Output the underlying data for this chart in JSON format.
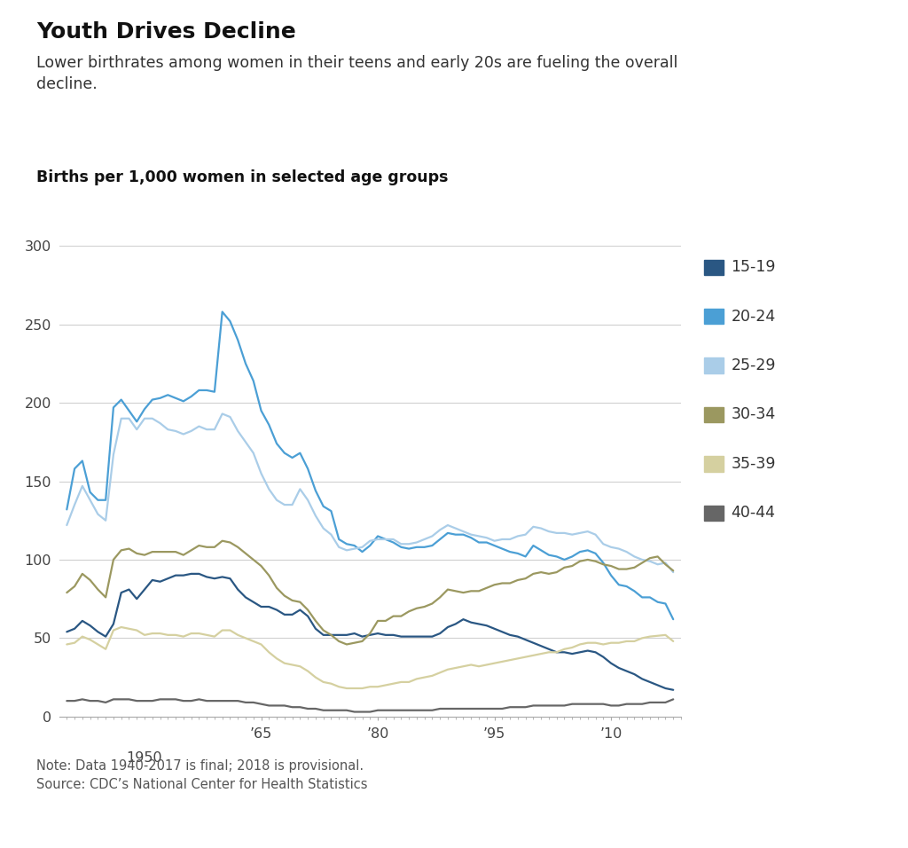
{
  "title": "Youth Drives Decline",
  "subtitle": "Lower birthrates among women in their teens and early 20s are fueling the overall\ndecline.",
  "axis_label": "Births per 1,000 women in selected age groups",
  "note": "Note: Data 1940-2017 is final; 2018 is provisional.\nSource: CDC’s National Center for Health Statistics",
  "ylim": [
    0,
    300
  ],
  "yticks": [
    0,
    50,
    100,
    150,
    200,
    250,
    300
  ],
  "xtick_positions": [
    1965,
    1980,
    1995,
    2010
  ],
  "xtick_labels": [
    "’65",
    "’80",
    "’95",
    "’10"
  ],
  "colors": {
    "15-19": "#2a5783",
    "20-24": "#4b9fd5",
    "25-29": "#aacde8",
    "30-34": "#9b9860",
    "35-39": "#d5d0a0",
    "40-44": "#666666"
  },
  "series": {
    "15-19": {
      "years": [
        1940,
        1941,
        1942,
        1943,
        1944,
        1945,
        1946,
        1947,
        1948,
        1949,
        1950,
        1951,
        1952,
        1953,
        1954,
        1955,
        1956,
        1957,
        1958,
        1959,
        1960,
        1961,
        1962,
        1963,
        1964,
        1965,
        1966,
        1967,
        1968,
        1969,
        1970,
        1971,
        1972,
        1973,
        1974,
        1975,
        1976,
        1977,
        1978,
        1979,
        1980,
        1981,
        1982,
        1983,
        1984,
        1985,
        1986,
        1987,
        1988,
        1989,
        1990,
        1991,
        1992,
        1993,
        1994,
        1995,
        1996,
        1997,
        1998,
        1999,
        2000,
        2001,
        2002,
        2003,
        2004,
        2005,
        2006,
        2007,
        2008,
        2009,
        2010,
        2011,
        2012,
        2013,
        2014,
        2015,
        2016,
        2017,
        2018
      ],
      "values": [
        54,
        56,
        61,
        58,
        54,
        51,
        59,
        79,
        81,
        75,
        81,
        87,
        86,
        88,
        90,
        90,
        91,
        91,
        89,
        88,
        89,
        88,
        81,
        76,
        73,
        70,
        70,
        68,
        65,
        65,
        68,
        64,
        56,
        52,
        52,
        52,
        52,
        53,
        51,
        52,
        53,
        52,
        52,
        51,
        51,
        51,
        51,
        51,
        53,
        57,
        59,
        62,
        60,
        59,
        58,
        56,
        54,
        52,
        51,
        49,
        47,
        45,
        43,
        41,
        41,
        40,
        41,
        42,
        41,
        38,
        34,
        31,
        29,
        27,
        24,
        22,
        20,
        18,
        17
      ]
    },
    "20-24": {
      "years": [
        1940,
        1941,
        1942,
        1943,
        1944,
        1945,
        1946,
        1947,
        1948,
        1949,
        1950,
        1951,
        1952,
        1953,
        1954,
        1955,
        1956,
        1957,
        1958,
        1959,
        1960,
        1961,
        1962,
        1963,
        1964,
        1965,
        1966,
        1967,
        1968,
        1969,
        1970,
        1971,
        1972,
        1973,
        1974,
        1975,
        1976,
        1977,
        1978,
        1979,
        1980,
        1981,
        1982,
        1983,
        1984,
        1985,
        1986,
        1987,
        1988,
        1989,
        1990,
        1991,
        1992,
        1993,
        1994,
        1995,
        1996,
        1997,
        1998,
        1999,
        2000,
        2001,
        2002,
        2003,
        2004,
        2005,
        2006,
        2007,
        2008,
        2009,
        2010,
        2011,
        2012,
        2013,
        2014,
        2015,
        2016,
        2017,
        2018
      ],
      "values": [
        132,
        158,
        163,
        143,
        138,
        138,
        197,
        202,
        195,
        188,
        196,
        202,
        203,
        205,
        203,
        201,
        204,
        208,
        208,
        207,
        258,
        252,
        240,
        225,
        214,
        195,
        186,
        174,
        168,
        165,
        168,
        158,
        144,
        134,
        131,
        113,
        110,
        109,
        105,
        109,
        115,
        113,
        111,
        108,
        107,
        108,
        108,
        109,
        113,
        117,
        116,
        116,
        114,
        111,
        111,
        109,
        107,
        105,
        104,
        102,
        109,
        106,
        103,
        102,
        100,
        102,
        105,
        106,
        104,
        98,
        90,
        84,
        83,
        80,
        76,
        76,
        73,
        72,
        62
      ]
    },
    "25-29": {
      "years": [
        1940,
        1941,
        1942,
        1943,
        1944,
        1945,
        1946,
        1947,
        1948,
        1949,
        1950,
        1951,
        1952,
        1953,
        1954,
        1955,
        1956,
        1957,
        1958,
        1959,
        1960,
        1961,
        1962,
        1963,
        1964,
        1965,
        1966,
        1967,
        1968,
        1969,
        1970,
        1971,
        1972,
        1973,
        1974,
        1975,
        1976,
        1977,
        1978,
        1979,
        1980,
        1981,
        1982,
        1983,
        1984,
        1985,
        1986,
        1987,
        1988,
        1989,
        1990,
        1991,
        1992,
        1993,
        1994,
        1995,
        1996,
        1997,
        1998,
        1999,
        2000,
        2001,
        2002,
        2003,
        2004,
        2005,
        2006,
        2007,
        2008,
        2009,
        2010,
        2011,
        2012,
        2013,
        2014,
        2015,
        2016,
        2017,
        2018
      ],
      "values": [
        122,
        135,
        147,
        138,
        129,
        125,
        167,
        190,
        190,
        183,
        190,
        190,
        187,
        183,
        182,
        180,
        182,
        185,
        183,
        183,
        193,
        191,
        182,
        175,
        168,
        155,
        145,
        138,
        135,
        135,
        145,
        138,
        128,
        120,
        116,
        108,
        106,
        107,
        108,
        112,
        113,
        113,
        113,
        110,
        110,
        111,
        113,
        115,
        119,
        122,
        120,
        118,
        116,
        115,
        114,
        112,
        113,
        113,
        115,
        116,
        121,
        120,
        118,
        117,
        117,
        116,
        117,
        118,
        116,
        110,
        108,
        107,
        105,
        102,
        100,
        99,
        97,
        98,
        92
      ]
    },
    "30-34": {
      "years": [
        1940,
        1941,
        1942,
        1943,
        1944,
        1945,
        1946,
        1947,
        1948,
        1949,
        1950,
        1951,
        1952,
        1953,
        1954,
        1955,
        1956,
        1957,
        1958,
        1959,
        1960,
        1961,
        1962,
        1963,
        1964,
        1965,
        1966,
        1967,
        1968,
        1969,
        1970,
        1971,
        1972,
        1973,
        1974,
        1975,
        1976,
        1977,
        1978,
        1979,
        1980,
        1981,
        1982,
        1983,
        1984,
        1985,
        1986,
        1987,
        1988,
        1989,
        1990,
        1991,
        1992,
        1993,
        1994,
        1995,
        1996,
        1997,
        1998,
        1999,
        2000,
        2001,
        2002,
        2003,
        2004,
        2005,
        2006,
        2007,
        2008,
        2009,
        2010,
        2011,
        2012,
        2013,
        2014,
        2015,
        2016,
        2017,
        2018
      ],
      "values": [
        79,
        83,
        91,
        87,
        81,
        76,
        100,
        106,
        107,
        104,
        103,
        105,
        105,
        105,
        105,
        103,
        106,
        109,
        108,
        108,
        112,
        111,
        108,
        104,
        100,
        96,
        90,
        82,
        77,
        74,
        73,
        68,
        61,
        55,
        52,
        48,
        46,
        47,
        48,
        53,
        61,
        61,
        64,
        64,
        67,
        69,
        70,
        72,
        76,
        81,
        80,
        79,
        80,
        80,
        82,
        84,
        85,
        85,
        87,
        88,
        91,
        92,
        91,
        92,
        95,
        96,
        99,
        100,
        99,
        97,
        96,
        94,
        94,
        95,
        98,
        101,
        102,
        97,
        93
      ]
    },
    "35-39": {
      "years": [
        1940,
        1941,
        1942,
        1943,
        1944,
        1945,
        1946,
        1947,
        1948,
        1949,
        1950,
        1951,
        1952,
        1953,
        1954,
        1955,
        1956,
        1957,
        1958,
        1959,
        1960,
        1961,
        1962,
        1963,
        1964,
        1965,
        1966,
        1967,
        1968,
        1969,
        1970,
        1971,
        1972,
        1973,
        1974,
        1975,
        1976,
        1977,
        1978,
        1979,
        1980,
        1981,
        1982,
        1983,
        1984,
        1985,
        1986,
        1987,
        1988,
        1989,
        1990,
        1991,
        1992,
        1993,
        1994,
        1995,
        1996,
        1997,
        1998,
        1999,
        2000,
        2001,
        2002,
        2003,
        2004,
        2005,
        2006,
        2007,
        2008,
        2009,
        2010,
        2011,
        2012,
        2013,
        2014,
        2015,
        2016,
        2017,
        2018
      ],
      "values": [
        46,
        47,
        51,
        49,
        46,
        43,
        55,
        57,
        56,
        55,
        52,
        53,
        53,
        52,
        52,
        51,
        53,
        53,
        52,
        51,
        55,
        55,
        52,
        50,
        48,
        46,
        41,
        37,
        34,
        33,
        32,
        29,
        25,
        22,
        21,
        19,
        18,
        18,
        18,
        19,
        19,
        20,
        21,
        22,
        22,
        24,
        25,
        26,
        28,
        30,
        31,
        32,
        33,
        32,
        33,
        34,
        35,
        36,
        37,
        38,
        39,
        40,
        41,
        41,
        43,
        44,
        46,
        47,
        47,
        46,
        47,
        47,
        48,
        48,
        50,
        51,
        51.5,
        52,
        48
      ]
    },
    "40-44": {
      "years": [
        1940,
        1941,
        1942,
        1943,
        1944,
        1945,
        1946,
        1947,
        1948,
        1949,
        1950,
        1951,
        1952,
        1953,
        1954,
        1955,
        1956,
        1957,
        1958,
        1959,
        1960,
        1961,
        1962,
        1963,
        1964,
        1965,
        1966,
        1967,
        1968,
        1969,
        1970,
        1971,
        1972,
        1973,
        1974,
        1975,
        1976,
        1977,
        1978,
        1979,
        1980,
        1981,
        1982,
        1983,
        1984,
        1985,
        1986,
        1987,
        1988,
        1989,
        1990,
        1991,
        1992,
        1993,
        1994,
        1995,
        1996,
        1997,
        1998,
        1999,
        2000,
        2001,
        2002,
        2003,
        2004,
        2005,
        2006,
        2007,
        2008,
        2009,
        2010,
        2011,
        2012,
        2013,
        2014,
        2015,
        2016,
        2017,
        2018
      ],
      "values": [
        10,
        10,
        11,
        10,
        10,
        9,
        11,
        11,
        11,
        10,
        10,
        10,
        11,
        11,
        11,
        10,
        10,
        11,
        10,
        10,
        10,
        10,
        10,
        9,
        9,
        8,
        7,
        7,
        7,
        6,
        6,
        5,
        5,
        4,
        4,
        4,
        4,
        3,
        3,
        3,
        4,
        4,
        4,
        4,
        4,
        4,
        4,
        4,
        5,
        5,
        5,
        5,
        5,
        5,
        5,
        5,
        5,
        6,
        6,
        6,
        7,
        7,
        7,
        7,
        7,
        8,
        8,
        8,
        8,
        8,
        7,
        7,
        8,
        8,
        8,
        9,
        9,
        9,
        11
      ]
    }
  },
  "background_color": "#ffffff",
  "grid_color": "#d0d0d0",
  "legend_order": [
    "15-19",
    "20-24",
    "25-29",
    "30-34",
    "35-39",
    "40-44"
  ],
  "xlim": [
    1939,
    2019
  ],
  "early_xtick_positions": [
    1950
  ],
  "early_xtick_labels": [
    "1950"
  ]
}
